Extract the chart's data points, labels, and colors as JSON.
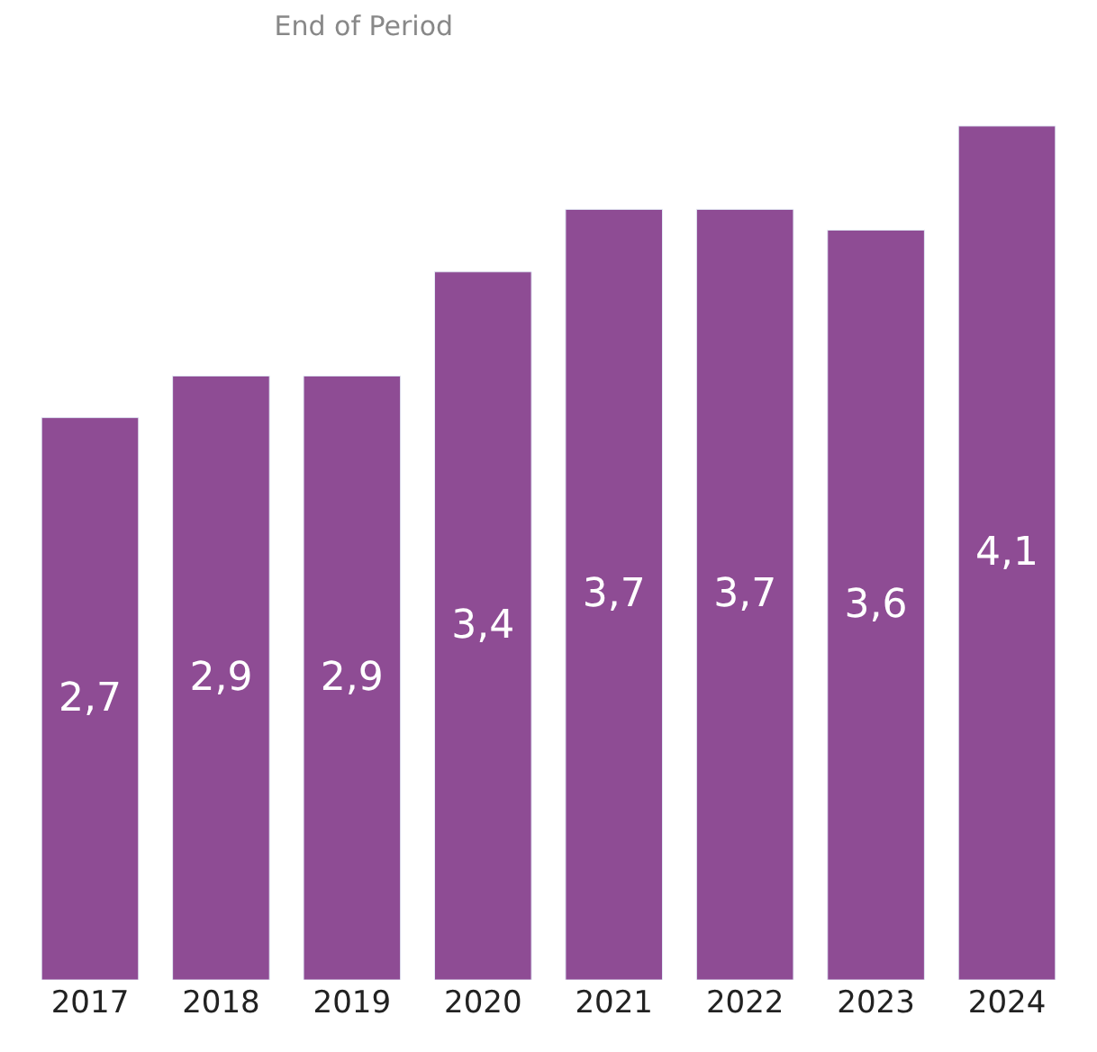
{
  "chart_data": {
    "type": "bar",
    "title": "End of Period",
    "categories": [
      "2017",
      "2018",
      "2019",
      "2020",
      "2021",
      "2022",
      "2023",
      "2024"
    ],
    "values": [
      2.7,
      2.9,
      2.9,
      3.4,
      3.7,
      3.7,
      3.6,
      4.1
    ],
    "value_labels": [
      "2,7",
      "2,9",
      "2,9",
      "3,4",
      "3,7",
      "3,7",
      "3,6",
      "4,1"
    ],
    "color": "#8e4c94",
    "tick_labels": "x"
  }
}
